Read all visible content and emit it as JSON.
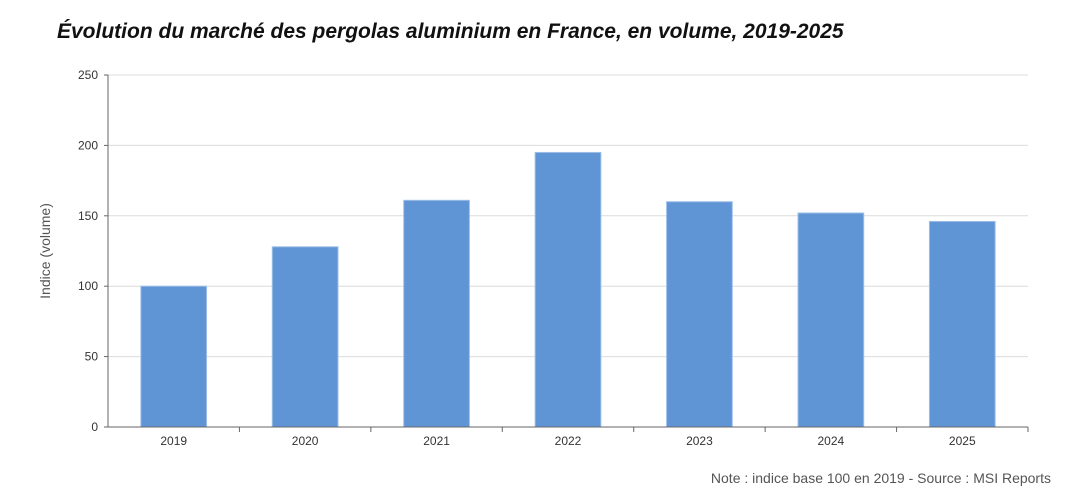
{
  "chart_data": {
    "type": "bar",
    "title": "Évolution du marché des pergolas aluminium en France, en volume, 2019-2025",
    "xlabel": "",
    "ylabel": "Indice (volume)",
    "categories": [
      "2019",
      "2020",
      "2021",
      "2022",
      "2023",
      "2024",
      "2025"
    ],
    "values": [
      100,
      128,
      161,
      195,
      160,
      152,
      146
    ],
    "ylim": [
      0,
      250
    ],
    "yticks": [
      0,
      50,
      100,
      150,
      200,
      250
    ],
    "grid": true,
    "bar_color": "#6095d5",
    "note": "Note : indice base 100 en 2019 - Source : MSI Reports"
  }
}
